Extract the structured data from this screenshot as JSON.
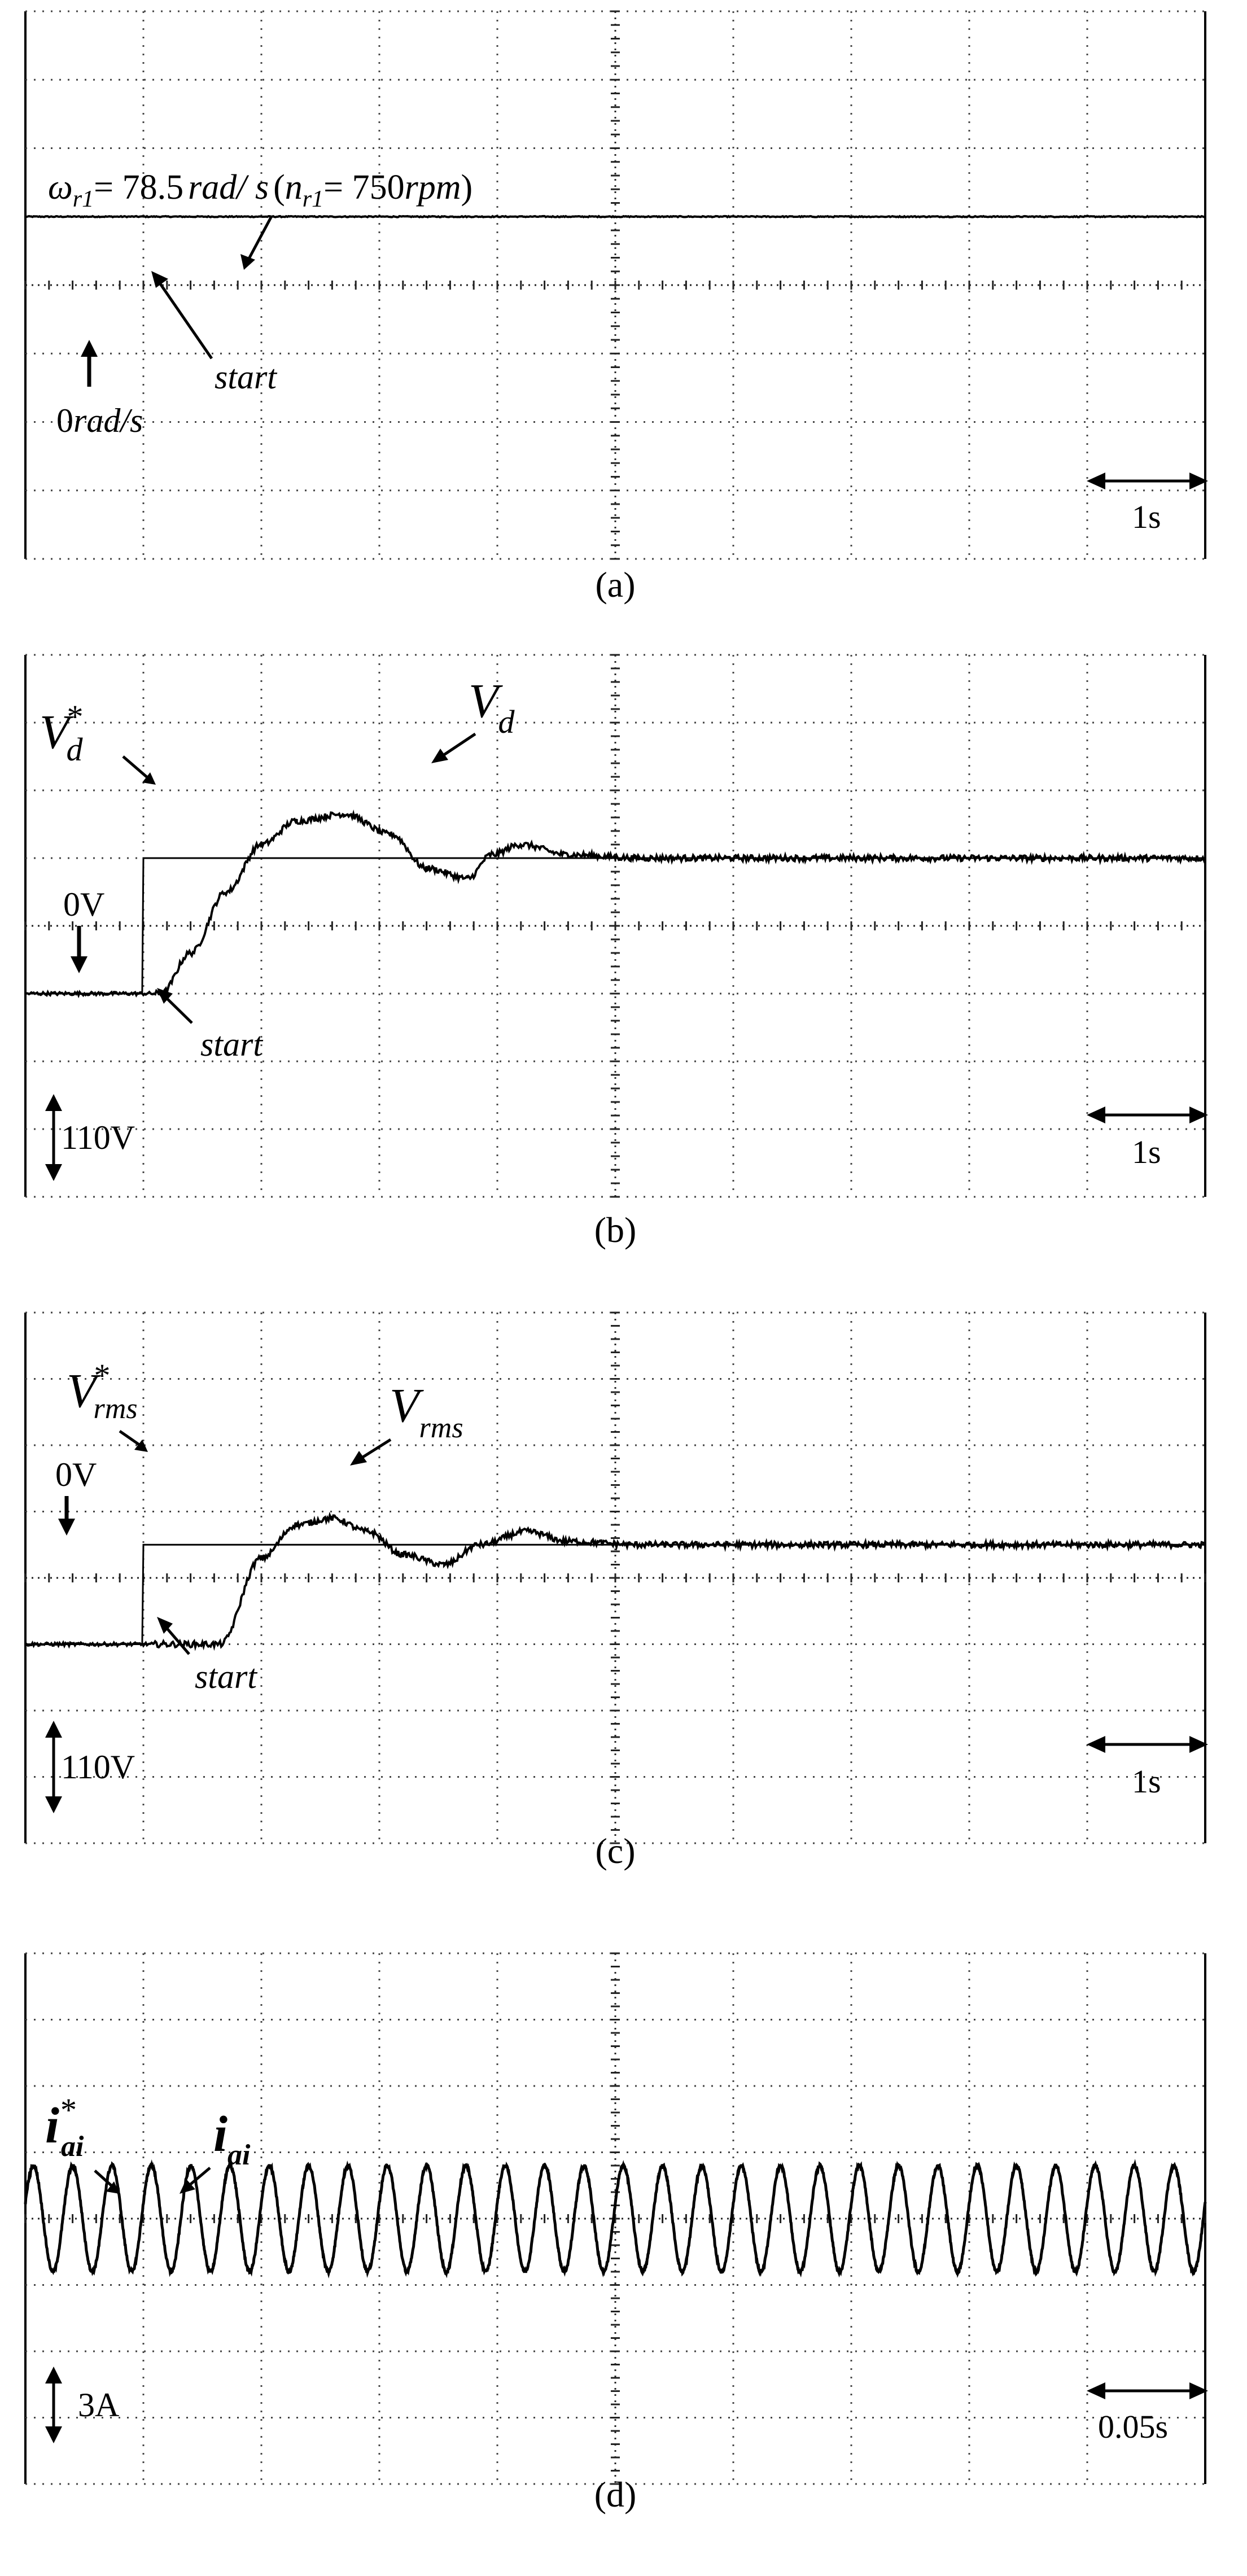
{
  "chart_data": [
    {
      "panel_label": "(a)",
      "type": "line",
      "grid": true,
      "x_divisions": 10,
      "y_divisions": 8,
      "time_scale": {
        "label": "1s",
        "italic_part": "s",
        "value_s": 1
      },
      "annotations": {
        "speed": {
          "omega": "ω",
          "omega_sub": "r1",
          "eq1": "= 78.5",
          "unit": "rad/ s",
          "paren_open": "(",
          "n": "n",
          "n_sub": "r1",
          "eq2": "= 750",
          "rpm": "rpm",
          "paren_close": ")"
        },
        "start": "start",
        "zero": "0",
        "zero_unit": "rad/s"
      },
      "series": [
        {
          "values_div": [
            [
              0,
              2.0
            ],
            [
              10,
              2.0
            ]
          ]
        }
      ]
    },
    {
      "panel_label": "(b)",
      "type": "line",
      "grid": true,
      "x_divisions": 10,
      "y_divisions": 8,
      "voltage_scale": {
        "label": "110V",
        "italic_part": "V",
        "value_v": 110
      },
      "time_scale": {
        "label": "1s",
        "italic_part": "s",
        "value_s": 1
      },
      "annotations": {
        "ref_symbol": "V",
        "ref_sup": "*",
        "ref_sub": "d",
        "meas_symbol": "V",
        "meas_sub": "d",
        "zero": "0V",
        "start": "start"
      },
      "series": [
        {
          "values_div": [
            [
              0,
              0
            ],
            [
              1.0,
              0
            ],
            [
              1.0,
              2.0
            ],
            [
              10,
              2.0
            ]
          ]
        },
        {
          "values_div": [
            [
              0,
              0
            ],
            [
              1.15,
              0
            ],
            [
              1.4,
              0.6
            ],
            [
              1.7,
              1.5
            ],
            [
              2.0,
              2.2
            ],
            [
              2.3,
              2.55
            ],
            [
              2.7,
              2.65
            ],
            [
              3.1,
              2.35
            ],
            [
              3.4,
              1.85
            ],
            [
              3.75,
              1.7
            ],
            [
              3.95,
              2.05
            ],
            [
              4.2,
              2.2
            ],
            [
              4.6,
              2.05
            ],
            [
              5.2,
              2.0
            ],
            [
              10,
              2.0
            ]
          ]
        }
      ]
    },
    {
      "panel_label": "(c)",
      "type": "line",
      "grid": true,
      "x_divisions": 10,
      "y_divisions": 8,
      "voltage_scale": {
        "label": "110V",
        "italic_part": "V",
        "value_v": 110
      },
      "time_scale": {
        "label": "1s",
        "italic_part": "s",
        "value_s": 1
      },
      "annotations": {
        "ref_symbol": "V",
        "ref_sup": "*",
        "ref_sub": "rms",
        "meas_symbol": "V",
        "meas_sub": "rms",
        "zero": "0V",
        "start": "start"
      },
      "series": [
        {
          "values_div": [
            [
              0,
              0
            ],
            [
              1.0,
              0
            ],
            [
              1.0,
              1.5
            ],
            [
              10,
              1.5
            ]
          ]
        },
        {
          "values_div": [
            [
              0,
              0
            ],
            [
              1.65,
              0
            ],
            [
              2.0,
              1.3
            ],
            [
              2.3,
              1.8
            ],
            [
              2.6,
              1.9
            ],
            [
              2.9,
              1.7
            ],
            [
              3.2,
              1.35
            ],
            [
              3.55,
              1.2
            ],
            [
              3.85,
              1.5
            ],
            [
              4.25,
              1.7
            ],
            [
              4.6,
              1.55
            ],
            [
              5.2,
              1.5
            ],
            [
              10,
              1.5
            ]
          ]
        }
      ]
    },
    {
      "panel_label": "(d)",
      "type": "line",
      "grid": true,
      "x_divisions": 10,
      "y_divisions": 8,
      "current_scale": {
        "label": "3A",
        "italic_part": "A",
        "value_a": 3
      },
      "time_scale": {
        "label": "0.05s",
        "italic_part": "s",
        "value_s": 0.05
      },
      "annotations": {
        "ref_symbol": "i",
        "ref_sup": "*",
        "ref_sub": "ai",
        "meas_symbol": "i",
        "meas_sub": "ai"
      },
      "series": [
        {
          "waveform": "sine",
          "cycles": 30,
          "offset_div": 0,
          "amplitude_div": 0.8
        }
      ]
    }
  ]
}
